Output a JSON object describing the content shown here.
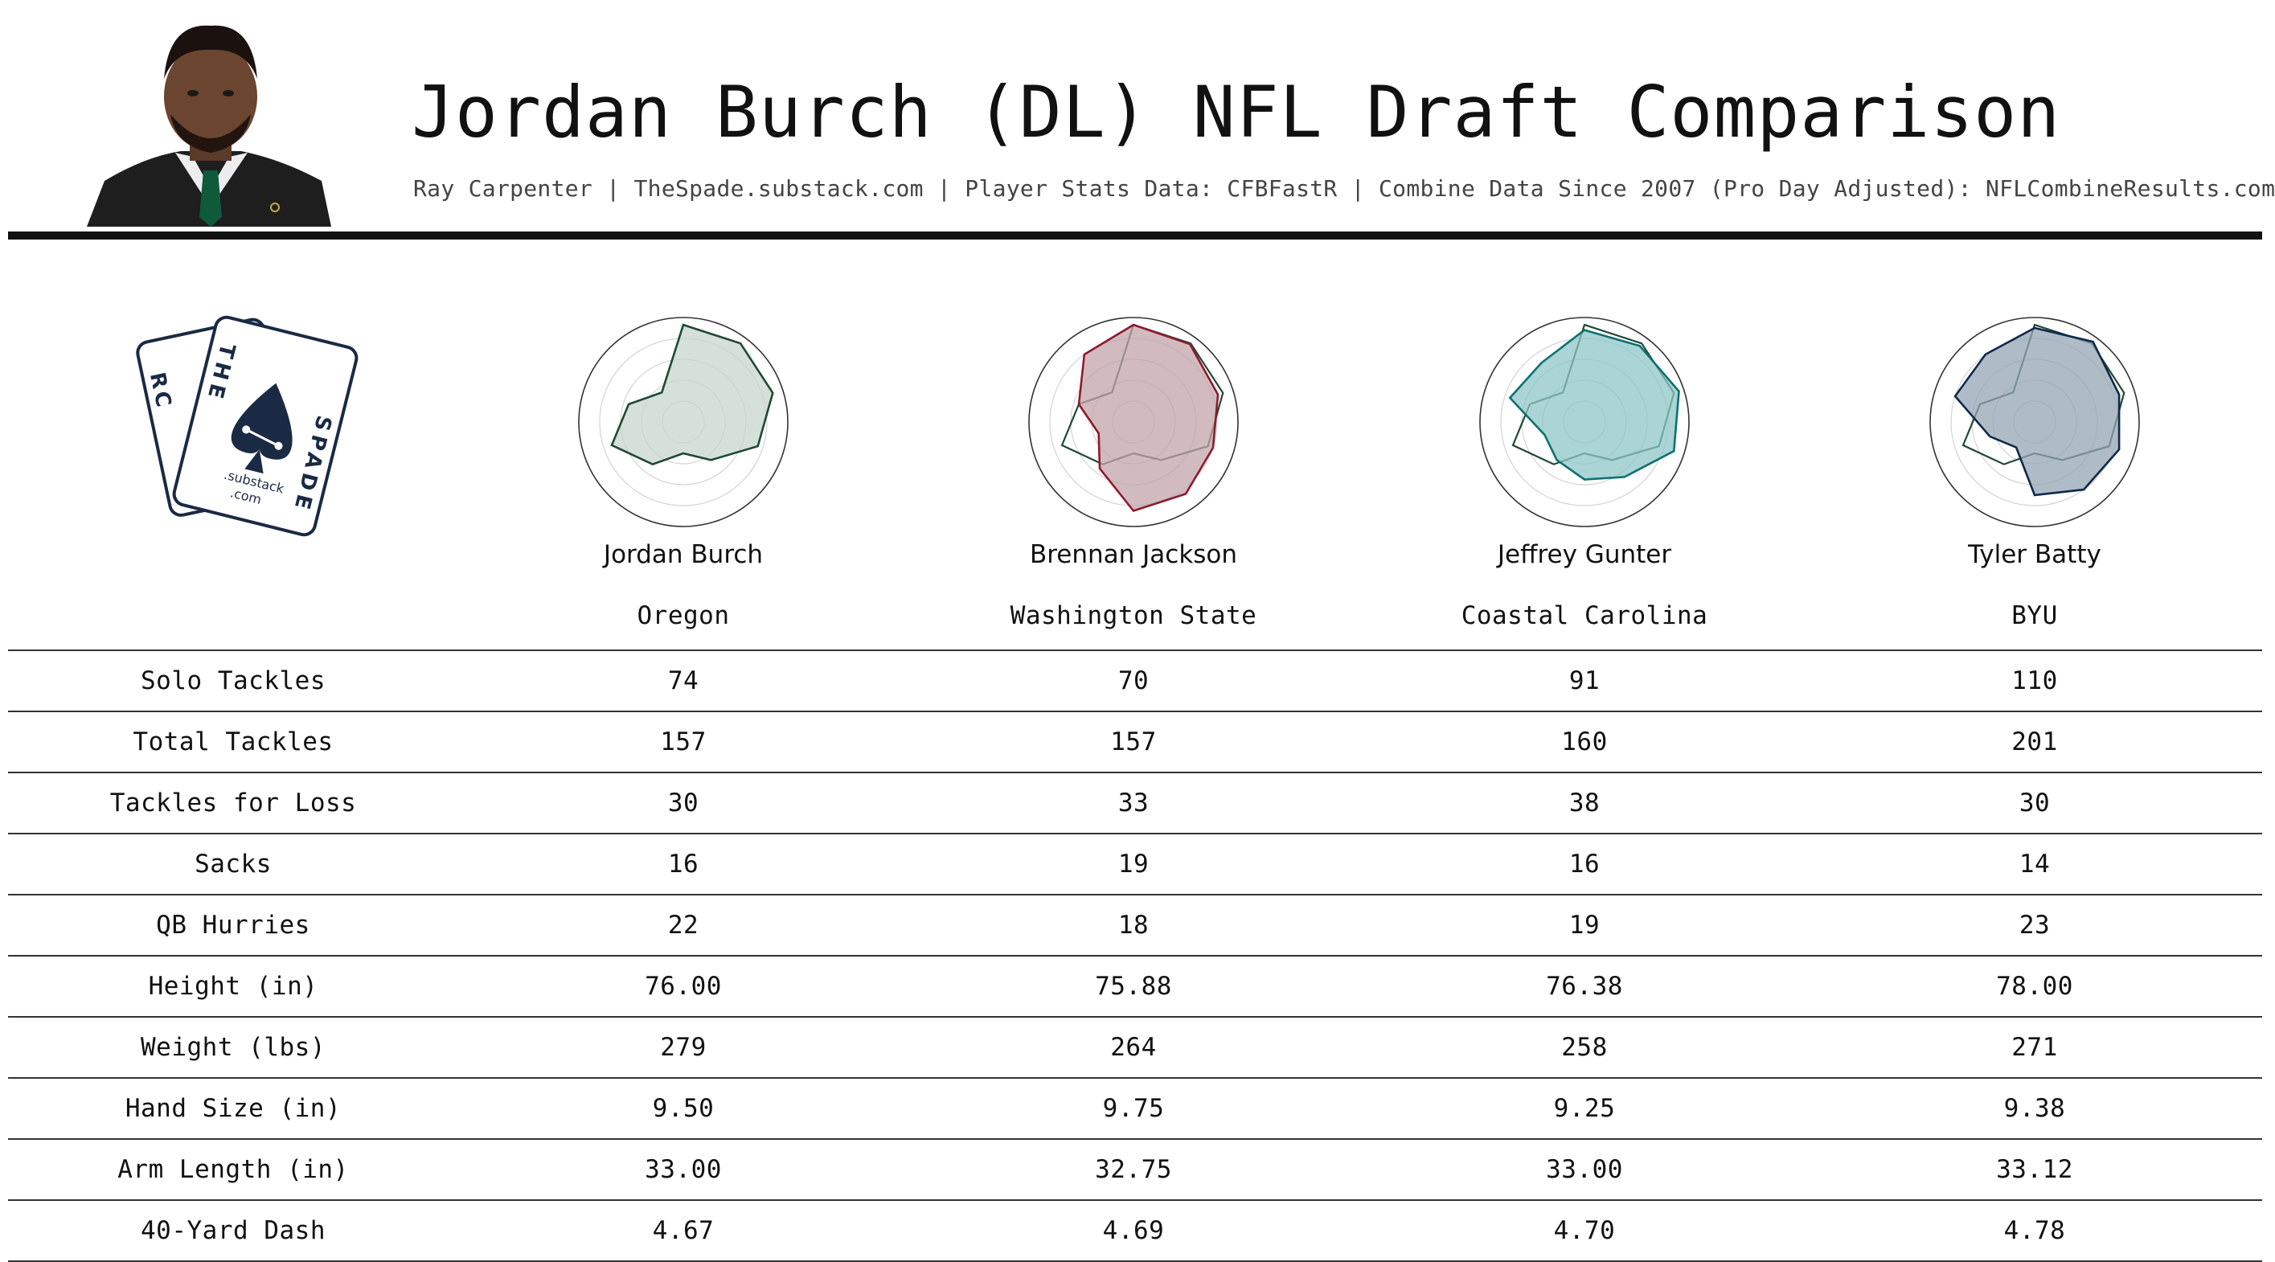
{
  "header": {
    "title": "Jordan Burch (DL) NFL Draft Comparison",
    "subtitle": "Ray Carpenter | TheSpade.substack.com | Player Stats Data: CFBFastR | Combine Data Since 2007 (Pro Day Adjusted): NFLCombineResults.com"
  },
  "logo": {
    "top_letters": "THE",
    "left_letters": "RC",
    "right_letters": "SPADE",
    "line1": ".substack",
    "line2": ".com",
    "color": "#1b2a44"
  },
  "players": [
    {
      "name": "Jordan Burch",
      "school": "Oregon",
      "fill": "#c7d6cf",
      "stroke": "#1f4a33"
    },
    {
      "name": "Brennan Jackson",
      "school": "Washington State",
      "fill": "#c3a4aa",
      "stroke": "#8e1a2e"
    },
    {
      "name": "Jeffrey Gunter",
      "school": "Coastal Carolina",
      "fill": "#8ec5c7",
      "stroke": "#0f7070"
    },
    {
      "name": "Tyler Batty",
      "school": "BYU",
      "fill": "#94a6b4",
      "stroke": "#0f2a4a"
    }
  ],
  "chart_data": {
    "type": "table",
    "columns": [
      "Jordan Burch",
      "Brennan Jackson",
      "Jeffrey Gunter",
      "Tyler Batty"
    ],
    "rows": [
      {
        "label": "Solo Tackles",
        "values": [
          "74",
          "70",
          "91",
          "110"
        ]
      },
      {
        "label": "Total Tackles",
        "values": [
          "157",
          "157",
          "160",
          "201"
        ]
      },
      {
        "label": "Tackles for Loss",
        "values": [
          "30",
          "33",
          "38",
          "30"
        ]
      },
      {
        "label": "Sacks",
        "values": [
          "16",
          "19",
          "16",
          "14"
        ]
      },
      {
        "label": "QB Hurries",
        "values": [
          "22",
          "18",
          "19",
          "23"
        ]
      },
      {
        "label": "Height (in)",
        "values": [
          "76.00",
          "75.88",
          "76.38",
          "78.00"
        ]
      },
      {
        "label": "Weight (lbs)",
        "values": [
          "279",
          "264",
          "258",
          "271"
        ]
      },
      {
        "label": "Hand Size (in)",
        "values": [
          "9.50",
          "9.75",
          "9.25",
          "9.38"
        ]
      },
      {
        "label": "Arm Length (in)",
        "values": [
          "33.00",
          "32.75",
          "33.00",
          "33.12"
        ]
      },
      {
        "label": "40-Yard Dash",
        "values": [
          "4.67",
          "4.69",
          "4.70",
          "4.78"
        ]
      }
    ],
    "radar": {
      "type": "radar",
      "axes": 10,
      "range": [
        0,
        1
      ],
      "series": [
        {
          "values": [
            0.93,
            0.93,
            0.9,
            0.75,
            0.45,
            0.3,
            0.5,
            0.72,
            0.55,
            0.35
          ]
        },
        {
          "values": [
            0.93,
            0.92,
            0.85,
            0.8,
            0.85,
            0.85,
            0.55,
            0.35,
            0.55,
            0.8
          ]
        },
        {
          "values": [
            0.88,
            0.9,
            0.95,
            0.9,
            0.65,
            0.55,
            0.45,
            0.4,
            0.75,
            0.7
          ]
        },
        {
          "values": [
            0.9,
            0.95,
            0.85,
            0.85,
            0.8,
            0.7,
            0.3,
            0.45,
            0.8,
            0.8
          ]
        }
      ]
    }
  }
}
